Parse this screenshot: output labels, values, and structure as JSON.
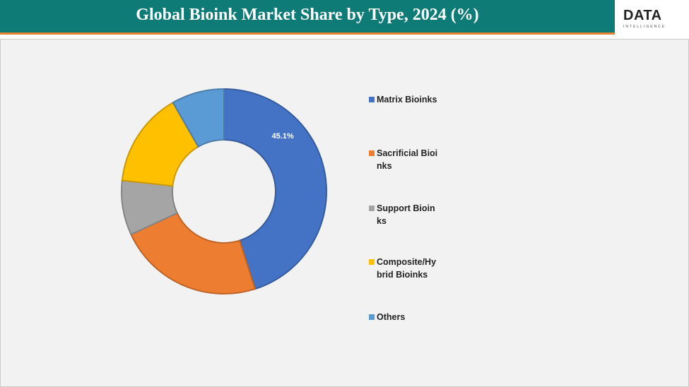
{
  "chart_data": {
    "type": "donut",
    "title": "Global Bioink Market Share by Type, 2024 (%)",
    "logo": {
      "text": "DATA",
      "subtext": "INTELLIGENCE"
    },
    "categories": [
      "Matrix Bioinks",
      "Sacrificial Bioinks",
      "Support Bioinks",
      "Composite/Hybrid Bioinks",
      "Others"
    ],
    "values": [
      45.1,
      23.0,
      8.6,
      15.0,
      8.3
    ],
    "value_labels": [
      "45.1%",
      null,
      null,
      null,
      null
    ],
    "colors": [
      "#4472c4",
      "#ed7d31",
      "#a5a5a5",
      "#ffc000",
      "#5b9bd5"
    ],
    "legend": "right"
  }
}
